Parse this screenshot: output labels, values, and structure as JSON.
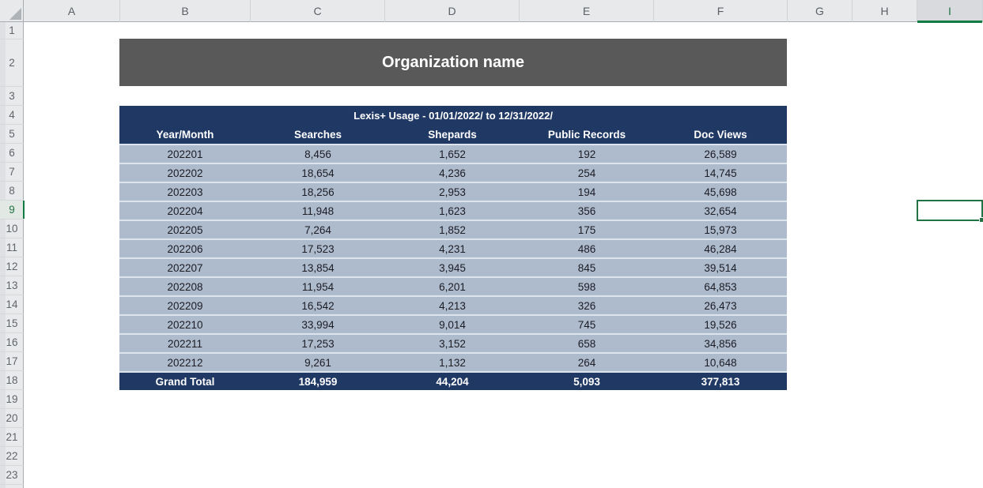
{
  "grid": {
    "column_letters": [
      "A",
      "B",
      "C",
      "D",
      "E",
      "F",
      "G",
      "H",
      "I"
    ],
    "row_numbers": [
      "1",
      "2",
      "3",
      "4",
      "5",
      "6",
      "7",
      "8",
      "9",
      "10",
      "11",
      "12",
      "13",
      "14",
      "15",
      "16",
      "17",
      "18",
      "19",
      "20",
      "21",
      "22",
      "23"
    ]
  },
  "selection": {
    "active_cell": "I9",
    "column": "I",
    "row": "9"
  },
  "banner": {
    "title": "Organization name"
  },
  "usage_table": {
    "title": "Lexis+ Usage - 01/01/2022/ to 12/31/2022/",
    "columns": [
      "Year/Month",
      "Searches",
      "Shepards",
      "Public Records",
      "Doc Views"
    ],
    "rows": [
      [
        "202201",
        "8,456",
        "1,652",
        "192",
        "26,589"
      ],
      [
        "202202",
        "18,654",
        "4,236",
        "254",
        "14,745"
      ],
      [
        "202203",
        "18,256",
        "2,953",
        "194",
        "45,698"
      ],
      [
        "202204",
        "11,948",
        "1,623",
        "356",
        "32,654"
      ],
      [
        "202205",
        "7,264",
        "1,852",
        "175",
        "15,973"
      ],
      [
        "202206",
        "17,523",
        "4,231",
        "486",
        "46,284"
      ],
      [
        "202207",
        "13,854",
        "3,945",
        "845",
        "39,514"
      ],
      [
        "202208",
        "11,954",
        "6,201",
        "598",
        "64,853"
      ],
      [
        "202209",
        "16,542",
        "4,213",
        "326",
        "26,473"
      ],
      [
        "202210",
        "33,994",
        "9,014",
        "745",
        "19,526"
      ],
      [
        "202211",
        "17,253",
        "3,152",
        "658",
        "34,856"
      ],
      [
        "202212",
        "9,261",
        "1,132",
        "264",
        "10,648"
      ]
    ],
    "grand_total": [
      "Grand Total",
      "184,959",
      "44,204",
      "5,093",
      "377,813"
    ]
  },
  "colors": {
    "banner_bg": "#595959",
    "table_header_bg": "#203864",
    "band_bg": "#aebbcd",
    "selection_green": "#217346"
  }
}
